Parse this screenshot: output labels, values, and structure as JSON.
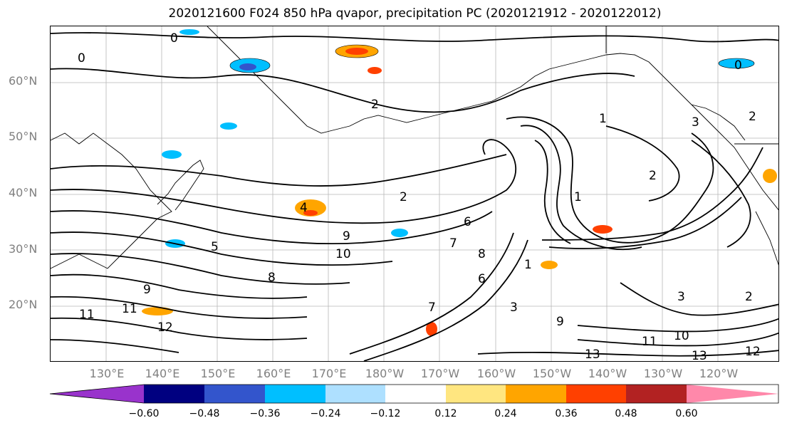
{
  "title": "2020121600 F024 850 hPa qvapor, precipitation PC (2020121912 - 2020122012)",
  "map": {
    "lat_labels": [
      "60°N",
      "50°N",
      "40°N",
      "30°N",
      "20°N"
    ],
    "lon_labels": [
      "130°E",
      "140°E",
      "150°E",
      "160°E",
      "170°E",
      "180°W",
      "170°W",
      "160°W",
      "150°W",
      "140°W",
      "130°W",
      "120°W"
    ],
    "lat_range": [
      10,
      70
    ],
    "lon_range": [
      120,
      251
    ],
    "contour_labels": [
      "0",
      "0",
      "0",
      "2",
      "1",
      "2",
      "1",
      "2",
      "3",
      "4",
      "5",
      "6",
      "7",
      "8",
      "9",
      "9",
      "10",
      "11",
      "11",
      "12",
      "13",
      "13",
      "12",
      "11",
      "10",
      "9",
      "8",
      "7",
      "6",
      "3",
      "2",
      "1",
      "2",
      "3"
    ],
    "grid": true
  },
  "colorbar": {
    "colors": [
      "#9933cc",
      "#000080",
      "#3355cc",
      "#00bfff",
      "#aee0ff",
      "#ffffff",
      "#ffe680",
      "#ffa500",
      "#ff4000",
      "#b22222",
      "#ff88aa"
    ],
    "ticks": [
      "−0.60",
      "−0.48",
      "−0.36",
      "−0.24",
      "−0.12",
      "0.12",
      "0.24",
      "0.36",
      "0.48",
      "0.60"
    ],
    "extend": "both"
  }
}
